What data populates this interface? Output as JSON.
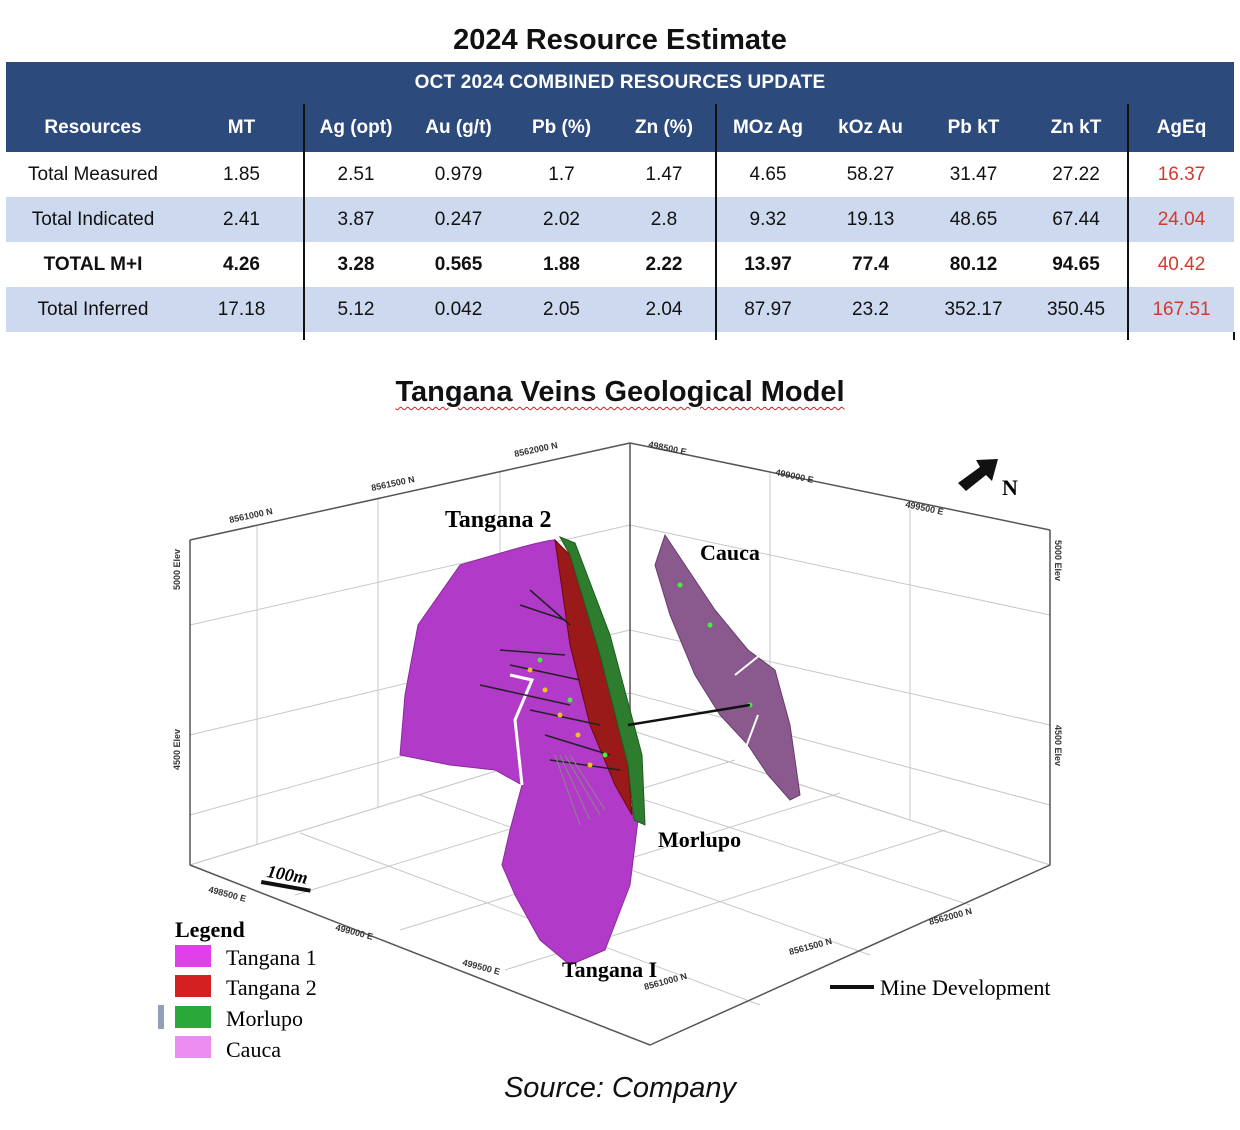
{
  "table_title": "2024 Resource Estimate",
  "table": {
    "banner": "OCT 2024 COMBINED RESOURCES UPDATE",
    "columns": [
      "Resources",
      "MT",
      "Ag (opt)",
      "Au (g/t)",
      "Pb (%)",
      "Zn (%)",
      "MOz Ag",
      "kOz Au",
      "Pb kT",
      "Zn kT",
      "AgEq"
    ],
    "rows": [
      {
        "cells": [
          "Total Measured",
          "1.85",
          "2.51",
          "0.979",
          "1.7",
          "1.47",
          "4.65",
          "58.27",
          "31.47",
          "27.22",
          "16.37"
        ]
      },
      {
        "cells": [
          "Total Indicated",
          "2.41",
          "3.87",
          "0.247",
          "2.02",
          "2.8",
          "9.32",
          "19.13",
          "48.65",
          "67.44",
          "24.04"
        ]
      },
      {
        "cells": [
          "TOTAL M+I",
          "4.26",
          "3.28",
          "0.565",
          "1.88",
          "2.22",
          "13.97",
          "77.4",
          "80.12",
          "94.65",
          "40.42"
        ]
      },
      {
        "cells": [
          "Total Inferred",
          "17.18",
          "5.12",
          "0.042",
          "2.05",
          "2.04",
          "87.97",
          "23.2",
          "352.17",
          "350.45",
          "167.51"
        ]
      }
    ],
    "ageq_color": "#d23a2e",
    "header_color": "#2d4a7c",
    "alt_row_color": "#cdd9ee"
  },
  "model_title": "Tangana Veins Geological Model",
  "model": {
    "labels": {
      "tangana2": "Tangana 2",
      "cauca": "Cauca",
      "morlupo": "Morlupo",
      "tangana1": "Tangana I",
      "north": "N",
      "scale": "100m"
    },
    "axis_labels": {
      "n_top": [
        "8561000 N",
        "8561500 N",
        "8562000 N"
      ],
      "e_top": [
        "498500 E",
        "499000 E",
        "499500 E"
      ],
      "elev_left": [
        "5000 Elev",
        "4500 Elev"
      ],
      "elev_right": [
        "5000 Elev",
        "4500 Elev"
      ],
      "e_bottom": [
        "498500 E",
        "499000 E",
        "499500 E"
      ],
      "n_bottom": [
        "8561000 N",
        "8561500 N",
        "8562000 N"
      ]
    },
    "legend": {
      "title": "Legend",
      "items": [
        {
          "label": "Tangana 1",
          "color": "#e040e8"
        },
        {
          "label": "Tangana 2",
          "color": "#d42020"
        },
        {
          "label": "Morlupo",
          "color": "#2aa83a"
        },
        {
          "label": "Cauca",
          "color": "#ec8cf0"
        }
      ]
    },
    "mine_development": "Mine Development",
    "colors": {
      "tangana1": "#b23ac8",
      "tangana2": "#9a1a1a",
      "morlupo": "#2e7d2e",
      "cauca": "#8a5a8e",
      "label_tangana2": "#c41e1e",
      "label_cauca": "#e070e0",
      "label_morlupo": "#2aa83a",
      "label_tangana1": "#e070e0"
    }
  },
  "source": "Source: Company"
}
